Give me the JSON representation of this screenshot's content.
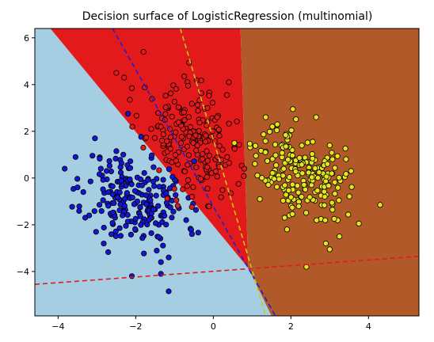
{
  "chart_data": {
    "type": "scatter",
    "title": "Decision surface of LogisticRegression (multinomial)",
    "xlabel": "",
    "ylabel": "",
    "xlim": [
      -4.6,
      5.3
    ],
    "ylim": [
      -5.9,
      6.4
    ],
    "xticks": [
      -4,
      -2,
      0,
      2,
      4
    ],
    "yticks": [
      -4,
      -2,
      0,
      2,
      4,
      6
    ],
    "xtick_labels": [
      "−4",
      "−2",
      "0",
      "2",
      "4"
    ],
    "ytick_labels": [
      "−4",
      "−2",
      "0",
      "2",
      "4",
      "6"
    ],
    "grid": false,
    "legend": "none",
    "regions": [
      {
        "class": "blue",
        "color": "#a6cee3",
        "polygon": [
          [
            -4.6,
            6.4
          ],
          [
            -4.2,
            6.4
          ],
          [
            0.9,
            -3.85
          ],
          [
            1.5,
            -5.9
          ],
          [
            -4.6,
            -5.9
          ]
        ]
      },
      {
        "class": "red",
        "color": "#e31a1c",
        "polygon": [
          [
            -4.2,
            6.4
          ],
          [
            0.7,
            6.4
          ],
          [
            0.9,
            -3.85
          ]
        ]
      },
      {
        "class": "brown",
        "color": "#b15928",
        "polygon": [
          [
            0.7,
            6.4
          ],
          [
            5.3,
            6.4
          ],
          [
            5.3,
            -5.9
          ],
          [
            1.5,
            -5.9
          ],
          [
            0.9,
            -3.85
          ]
        ]
      }
    ],
    "lines": [
      {
        "color": "#1f1fd6",
        "style": "dashed",
        "points": [
          [
            -2.6,
            6.4
          ],
          [
            1.6,
            -5.9
          ]
        ]
      },
      {
        "color": "#c8c819",
        "style": "dashed",
        "points": [
          [
            -0.85,
            6.4
          ],
          [
            1.35,
            -5.9
          ]
        ]
      },
      {
        "color": "#e31a1c",
        "style": "dashed",
        "points": [
          [
            -4.6,
            -4.55
          ],
          [
            5.3,
            -3.35
          ]
        ]
      }
    ],
    "series": [
      {
        "color": "#1515d6",
        "cluster": {
          "n": 210,
          "center": [
            -2.0,
            -0.9
          ],
          "std": [
            0.65,
            1.0
          ],
          "rho": -0.15,
          "seed": 11
        },
        "points": [
          [
            -3.55,
            0.9
          ],
          [
            -3.05,
            1.7
          ],
          [
            -2.2,
            2.75
          ],
          [
            -2.9,
            0.4
          ],
          [
            -3.5,
            -0.4
          ],
          [
            -3.35,
            -0.6
          ],
          [
            -2.1,
            -4.2
          ],
          [
            -1.35,
            -4.1
          ],
          [
            -1.15,
            -4.85
          ],
          [
            -1.35,
            -3.6
          ],
          [
            -1.15,
            -3.4
          ],
          [
            -0.55,
            -2.4
          ],
          [
            -0.7,
            -1.8
          ],
          [
            -1.05,
            0.05
          ],
          [
            -2.5,
            1.15
          ],
          [
            -2.75,
            0.3
          ],
          [
            -3.2,
            -1.6
          ]
        ]
      },
      {
        "color": "#e31a1c",
        "cluster": {
          "n": 180,
          "center": [
            -0.6,
            1.55
          ],
          "std": [
            0.55,
            1.15
          ],
          "rho": -0.3,
          "seed": 23
        },
        "points": [
          [
            -1.8,
            5.4
          ],
          [
            -2.5,
            4.5
          ],
          [
            -2.3,
            4.3
          ],
          [
            -2.1,
            3.85
          ],
          [
            -2.15,
            3.35
          ],
          [
            -0.75,
            4.35
          ],
          [
            -0.65,
            3.95
          ],
          [
            0.35,
            3.55
          ],
          [
            0.4,
            4.1
          ],
          [
            -1.6,
            2.1
          ],
          [
            -1.35,
            2.2
          ],
          [
            -1.1,
            1.25
          ],
          [
            0.55,
            1.25
          ],
          [
            0.8,
            0.4
          ],
          [
            -0.55,
            -0.8
          ],
          [
            0.45,
            -0.65
          ],
          [
            0.65,
            -0.25
          ],
          [
            -0.15,
            3.0
          ],
          [
            0.1,
            2.6
          ]
        ]
      },
      {
        "color": "#e5e51f",
        "cluster": {
          "n": 200,
          "center": [
            2.25,
            0.25
          ],
          "std": [
            0.55,
            0.95
          ],
          "rho": -0.3,
          "seed": 37
        },
        "points": [
          [
            2.05,
            2.95
          ],
          [
            2.65,
            2.6
          ],
          [
            4.3,
            -1.15
          ],
          [
            3.75,
            -1.95
          ],
          [
            3.25,
            -2.5
          ],
          [
            2.9,
            -2.8
          ],
          [
            3.0,
            -3.05
          ],
          [
            2.4,
            -3.8
          ],
          [
            1.9,
            -2.2
          ],
          [
            1.35,
            2.6
          ],
          [
            3.0,
            1.4
          ],
          [
            1.1,
            0.95
          ],
          [
            1.2,
            -0.9
          ],
          [
            3.55,
            0.3
          ]
        ]
      }
    ]
  }
}
